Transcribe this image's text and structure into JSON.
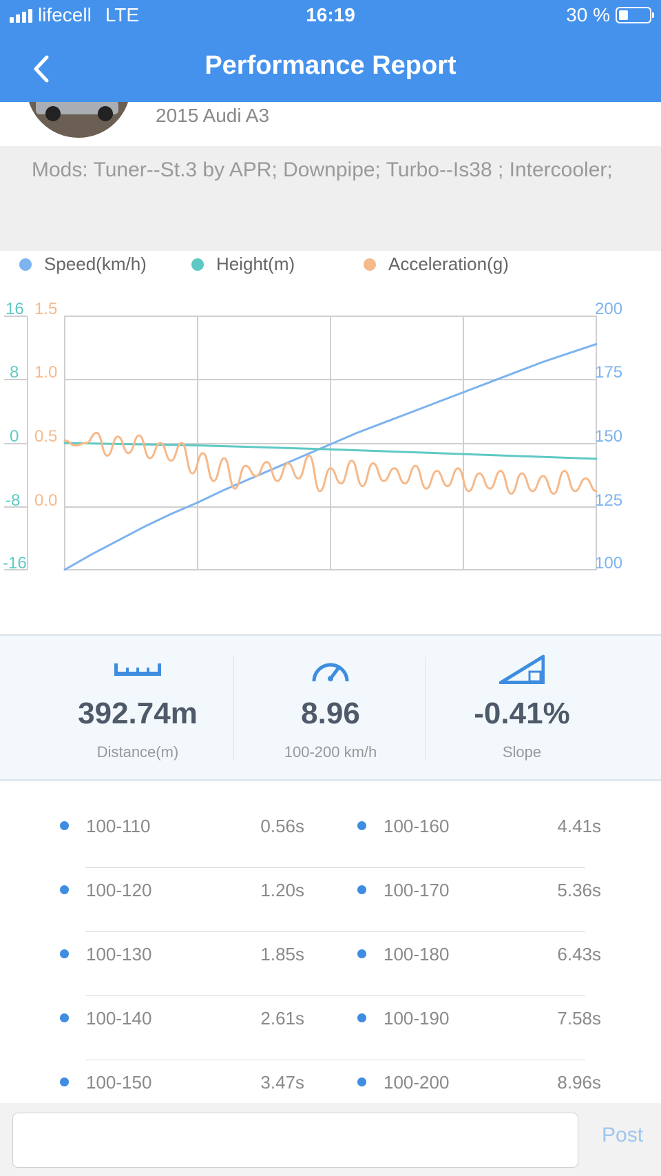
{
  "status_bar": {
    "carrier": "lifecell",
    "network": "LTE",
    "time": "16:19",
    "battery": "30 %",
    "battery_level": 0.3
  },
  "header": {
    "title": "Performance Report",
    "back_icon": "chevron-left-icon"
  },
  "car": {
    "name": "2015 Audi A3"
  },
  "mods": "Mods: Tuner--St.3 by APR; Downpipe; Turbo--Is38 ; Intercooler;",
  "colors": {
    "accent": "#4592ec",
    "speed": "#7db3ee",
    "height": "#5ec9c4",
    "acceleration": "#f6b98a"
  },
  "chart_data": {
    "type": "line",
    "series": [
      {
        "name": "Speed(km/h)",
        "axis": "right",
        "color": "#7db3ee",
        "x": [
          0,
          0.05,
          0.1,
          0.15,
          0.2,
          0.25,
          0.3,
          0.35,
          0.4,
          0.45,
          0.5,
          0.55,
          0.6,
          0.65,
          0.7,
          0.75,
          0.8,
          0.85,
          0.9,
          0.95,
          1.0
        ],
        "values": [
          100,
          106,
          111.5,
          117,
          122,
          126.5,
          131.5,
          136,
          140.5,
          145,
          149.5,
          154,
          158,
          162,
          166,
          170,
          174,
          178,
          182,
          185.5,
          189
        ]
      },
      {
        "name": "Height(m)",
        "axis": "left-outer",
        "color": "#5ec9c4",
        "x": [
          0,
          0.25,
          0.5,
          0.75,
          1.0
        ],
        "values": [
          0,
          -0.3,
          -0.8,
          -1.4,
          -2.0
        ]
      },
      {
        "name": "Acceleration(g)",
        "axis": "left-inner",
        "color": "#f6b98a",
        "x": [
          0,
          0.02,
          0.04,
          0.06,
          0.08,
          0.1,
          0.12,
          0.14,
          0.16,
          0.18,
          0.2,
          0.22,
          0.24,
          0.26,
          0.28,
          0.3,
          0.32,
          0.34,
          0.36,
          0.38,
          0.4,
          0.42,
          0.44,
          0.46,
          0.48,
          0.5,
          0.52,
          0.54,
          0.56,
          0.58,
          0.6,
          0.62,
          0.64,
          0.66,
          0.68,
          0.7,
          0.72,
          0.74,
          0.76,
          0.78,
          0.8,
          0.82,
          0.84,
          0.86,
          0.88,
          0.9,
          0.92,
          0.94,
          0.96,
          0.98,
          1.0
        ],
        "values": [
          0.52,
          0.48,
          0.5,
          0.58,
          0.4,
          0.55,
          0.42,
          0.56,
          0.38,
          0.5,
          0.36,
          0.5,
          0.26,
          0.42,
          0.2,
          0.38,
          0.14,
          0.32,
          0.24,
          0.35,
          0.2,
          0.34,
          0.22,
          0.4,
          0.12,
          0.3,
          0.18,
          0.36,
          0.16,
          0.34,
          0.2,
          0.3,
          0.18,
          0.32,
          0.14,
          0.28,
          0.16,
          0.3,
          0.12,
          0.26,
          0.14,
          0.28,
          0.1,
          0.26,
          0.12,
          0.24,
          0.1,
          0.28,
          0.12,
          0.22,
          0.12
        ]
      }
    ],
    "axes": {
      "left_outer": {
        "label": "Height(m)",
        "ticks": [
          "16",
          "8",
          "0",
          "-8",
          "-16"
        ],
        "range": [
          -16,
          16
        ]
      },
      "left_inner": {
        "label": "Acceleration(g)",
        "ticks": [
          "1.5",
          "1.0",
          "0.5",
          "0.0"
        ],
        "range": [
          -0.5,
          1.5
        ]
      },
      "right": {
        "label": "Speed(km/h)",
        "ticks": [
          "200",
          "175",
          "150",
          "125",
          "100"
        ],
        "range": [
          100,
          200
        ]
      }
    },
    "grid": true,
    "legend": "top-left"
  },
  "stats": [
    {
      "icon": "ruler-icon",
      "value": "392.74m",
      "label": "Distance(m)"
    },
    {
      "icon": "speedometer-icon",
      "value": "8.96",
      "label": "100-200 km/h"
    },
    {
      "icon": "slope-icon",
      "value": "-0.41%",
      "label": "Slope"
    }
  ],
  "splits": [
    {
      "left": {
        "label": "100-110",
        "value": "0.56s"
      },
      "right": {
        "label": "100-160",
        "value": "4.41s"
      }
    },
    {
      "left": {
        "label": "100-120",
        "value": "1.20s"
      },
      "right": {
        "label": "100-170",
        "value": "5.36s"
      }
    },
    {
      "left": {
        "label": "100-130",
        "value": "1.85s"
      },
      "right": {
        "label": "100-180",
        "value": "6.43s"
      }
    },
    {
      "left": {
        "label": "100-140",
        "value": "2.61s"
      },
      "right": {
        "label": "100-190",
        "value": "7.58s"
      }
    },
    {
      "left": {
        "label": "100-150",
        "value": "3.47s"
      },
      "right": {
        "label": "100-200",
        "value": "8.96s"
      }
    }
  ],
  "footer": {
    "comment_placeholder": "",
    "post_label": "Post"
  }
}
